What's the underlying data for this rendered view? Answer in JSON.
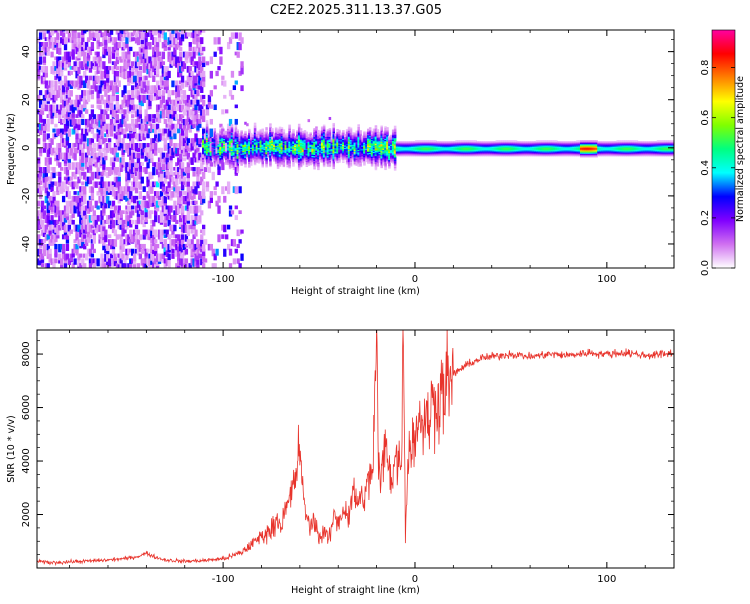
{
  "title": "C2E2.2025.311.13.37.G05",
  "chart_data": [
    {
      "type": "heatmap",
      "name": "spectrogram",
      "xlabel": "Height of straight line (km)",
      "ylabel": "Frequency (Hz)",
      "xlim": [
        -197,
        135
      ],
      "ylim": [
        -50,
        49
      ],
      "x_ticks": [
        -100,
        0,
        100
      ],
      "x_tick_labels": [
        "-100",
        "0",
        "100"
      ],
      "y_ticks": [
        -40,
        -20,
        0,
        20,
        40
      ],
      "y_tick_labels": [
        "-40",
        "-20",
        "0",
        "20",
        "40"
      ],
      "colorbar": {
        "label": "Normalized spectral amplitude",
        "range": [
          0,
          0.95
        ],
        "ticks": [
          0.0,
          0.2,
          0.4,
          0.6,
          0.8
        ],
        "tick_labels": [
          "0.0",
          "0.2",
          "0.4",
          "0.6",
          "0.8"
        ],
        "colormap": [
          "#ffffff",
          "#d070f0",
          "#8000ff",
          "#0000ff",
          "#00ffff",
          "#00ff80",
          "#80ff00",
          "#ffff00",
          "#ff8000",
          "#ff0000",
          "#ff00a0"
        ]
      },
      "features": [
        {
          "description_x_range": [
            -197,
            -100
          ],
          "kind": "broadband noise",
          "amplitude": 0.1
        },
        {
          "description_x_range": [
            -110,
            -10
          ],
          "kind": "main line near 0 Hz, turbulent",
          "amplitude": 0.45
        },
        {
          "description_x_range": [
            -10,
            135
          ],
          "kind": "main line near 0 Hz, steady",
          "amplitude": 0.5
        }
      ]
    },
    {
      "type": "line",
      "name": "snr",
      "xlabel": "Height of straight line (km)",
      "ylabel": "SNR (10 * v/v)",
      "xlim": [
        -197,
        135
      ],
      "ylim": [
        0,
        8900
      ],
      "x_ticks": [
        -100,
        0,
        100
      ],
      "x_tick_labels": [
        "-100",
        "0",
        "100"
      ],
      "y_ticks": [
        2000,
        4000,
        6000,
        8000
      ],
      "y_tick_labels": [
        "2000",
        "4000",
        "6000",
        "8000"
      ],
      "color": "#e8342c",
      "series": [
        {
          "name": "SNR",
          "x": [
            -197,
            -190,
            -180,
            -170,
            -160,
            -150,
            -145,
            -140,
            -135,
            -130,
            -120,
            -110,
            -100,
            -95,
            -90,
            -85,
            -80,
            -75,
            -72,
            -70,
            -67,
            -65,
            -63,
            -61,
            -60,
            -59,
            -57,
            -55,
            -52,
            -50,
            -47,
            -45,
            -42,
            -40,
            -37,
            -35,
            -32,
            -30,
            -27,
            -25,
            -22,
            -21,
            -20,
            -19,
            -18,
            -17,
            -15,
            -12,
            -10,
            -8,
            -7,
            -6,
            -5,
            -4,
            -3,
            0,
            3,
            6,
            9,
            12,
            15,
            18,
            21,
            25,
            30,
            35,
            40,
            45,
            50,
            60,
            70,
            80,
            90,
            100,
            110,
            120,
            130,
            135
          ],
          "y": [
            250,
            200,
            230,
            260,
            300,
            360,
            420,
            550,
            400,
            300,
            250,
            280,
            350,
            450,
            600,
            900,
            1200,
            1400,
            1900,
            1600,
            2200,
            2600,
            3200,
            4000,
            4800,
            3000,
            2200,
            1500,
            1800,
            1100,
            1400,
            1000,
            2000,
            1700,
            2300,
            1900,
            2800,
            2500,
            2600,
            3000,
            3800,
            6000,
            8800,
            3500,
            3300,
            3900,
            4500,
            3400,
            4200,
            3800,
            4800,
            8700,
            1300,
            3500,
            4500,
            5000,
            5800,
            5300,
            6100,
            6400,
            6800,
            7000,
            7300,
            7500,
            7700,
            7850,
            7900,
            7950,
            8000,
            7900,
            8000,
            7950,
            8050,
            8000,
            8050,
            7950,
            8000,
            8050
          ]
        }
      ]
    }
  ]
}
